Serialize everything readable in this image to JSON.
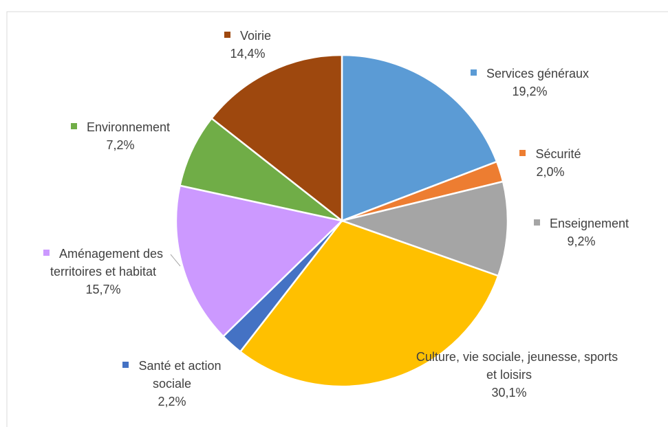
{
  "chart_data": {
    "type": "pie",
    "categories": [
      "Services généraux",
      "Sécurité",
      "Enseignement",
      "Culture, vie sociale, jeunesse, sports et loisirs",
      "Santé et action sociale",
      "Aménagement des territoires et habitat",
      "Environnement",
      "Voirie"
    ],
    "values": [
      19.2,
      2.0,
      9.2,
      30.1,
      2.2,
      15.7,
      7.2,
      14.4
    ],
    "value_labels": [
      "19,2%",
      "2,0%",
      "9,2%",
      "30,1%",
      "2,2%",
      "15,7%",
      "7,2%",
      "14,4%"
    ],
    "colors": [
      "#5b9bd5",
      "#ed7d31",
      "#a5a5a5",
      "#ffc000",
      "#4472c4",
      "#cc99ff",
      "#70ad47",
      "#9e480e"
    ]
  }
}
